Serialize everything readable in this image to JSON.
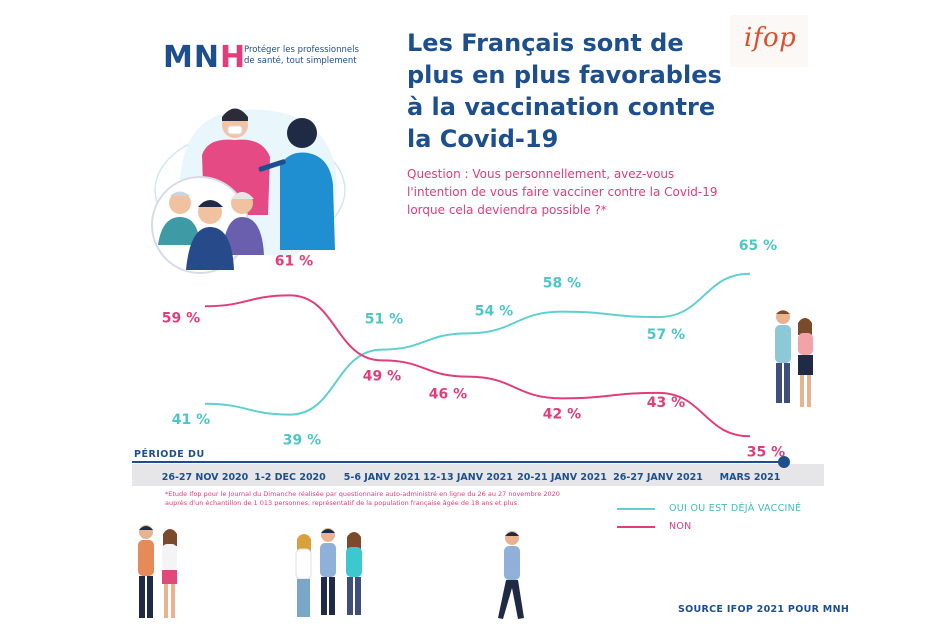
{
  "header": {
    "logo_text_left": "MN",
    "logo_text_h": "H",
    "tagline": "Protéger les professionnels de santé, tout simplement",
    "ifop_logo": "ifop",
    "title": "Les Français sont de plus en plus favorables à la vaccination contre la Covid-19",
    "question": "Question : Vous personnellement, avez-vous l'intention de vous faire vacciner contre la Covid-19 lorque cela deviendra possible ?*"
  },
  "chart_data": {
    "type": "line",
    "x_axis_title": "PÉRIODE DU",
    "categories": [
      "26-27 NOV 2020",
      "1-2 DEC 2020",
      "5-6 JANV 2021",
      "12-13 JANV 2021",
      "20-21 JANV 2021",
      "26-27 JANV 2021",
      "MARS 2021"
    ],
    "series": [
      {
        "name": "OUI OU EST DÉJÀ VACCINÉ",
        "color": "#5fcfcf",
        "values": [
          41,
          39,
          51,
          54,
          58,
          57,
          65
        ]
      },
      {
        "name": "NON",
        "color": "#e13d7a",
        "values": [
          59,
          61,
          49,
          46,
          42,
          43,
          35
        ]
      }
    ],
    "value_suffix": " %",
    "ylim": [
      30,
      70
    ],
    "grid": false,
    "legend_position": "bottom-right"
  },
  "footnote": "*Etude Ifop pour le Journal du Dimanche réalisée par questionnaire auto-administré en ligne du 26 au 27 novembre 2020 auprès d'un échantillon de 1 013 personnes, représentatif de la population française âgée de 18 ans et plus.",
  "source": "SOURCE IFOP 2021 POUR MNH",
  "colors": {
    "brand_blue": "#1d4f8f",
    "pink": "#e13d7a",
    "teal": "#5fcfcf"
  }
}
